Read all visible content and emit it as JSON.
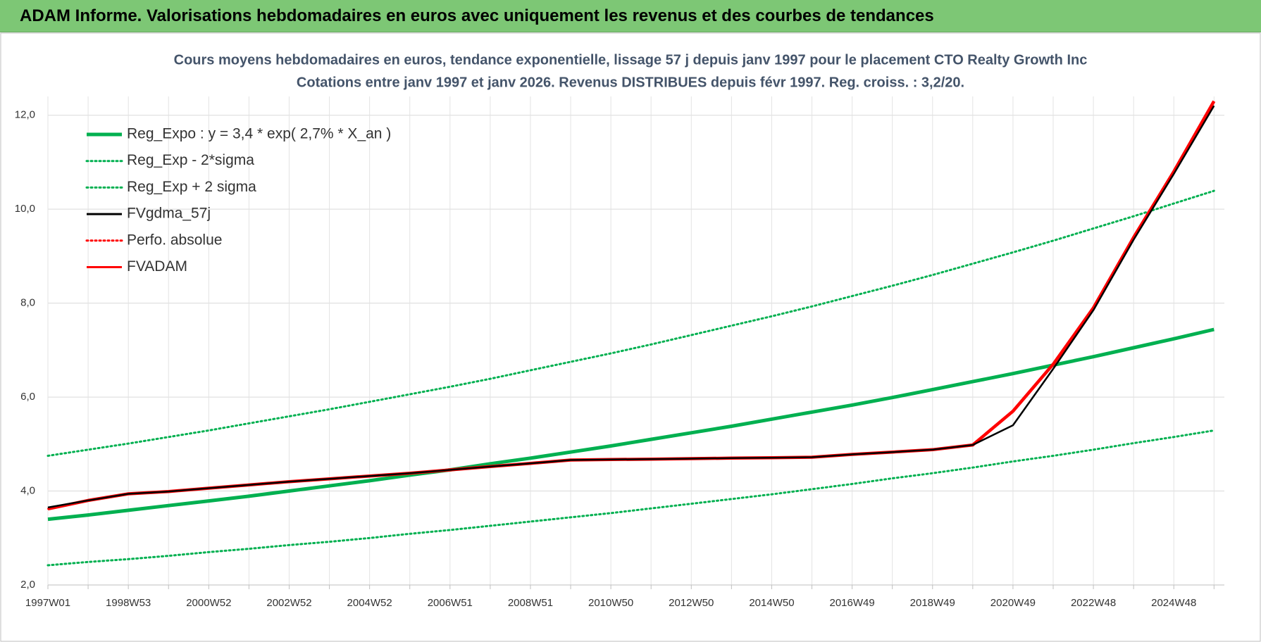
{
  "header": {
    "title": "ADAM Informe. Valorisations hebdomadaires en euros avec uniquement les revenus et des courbes de tendances"
  },
  "chart_data": {
    "type": "line",
    "title": "Cours moyens hebdomadaires en euros, tendance exponentielle, lissage 57 j depuis janv 1997 pour le placement CTO Realty Growth Inc",
    "subtitle": "Cotations entre janv 1997 et janv 2026. Revenus DISTRIBUES depuis févr 1997. Reg. croiss. : 3,2/20.",
    "categories": [
      "1997W01",
      null,
      "1998W53",
      null,
      "2000W52",
      null,
      "2002W52",
      null,
      "2004W52",
      null,
      "2006W51",
      null,
      "2008W51",
      null,
      "2010W50",
      null,
      "2012W50",
      null,
      "2014W50",
      null,
      "2016W49",
      null,
      "2018W49",
      null,
      "2020W49",
      null,
      "2022W48",
      null,
      "2024W48",
      null
    ],
    "ylim": [
      2,
      12.4
    ],
    "yticks": [
      {
        "value": 2,
        "label": "2,0"
      },
      {
        "value": 4,
        "label": "4,0"
      },
      {
        "value": 6,
        "label": "6,0"
      },
      {
        "value": 8,
        "label": "8,0"
      },
      {
        "value": 10,
        "label": "10,0"
      },
      {
        "value": 12,
        "label": "12,0"
      }
    ],
    "grid": true,
    "legend": "top-left",
    "series": [
      {
        "name": "Reg_Expo : y = 3,4 * exp( 2,7% *  X_an )",
        "color": "#00b050",
        "line_style": "solid",
        "values": [
          3.4,
          3.49,
          3.59,
          3.69,
          3.79,
          3.89,
          4.0,
          4.11,
          4.22,
          4.34,
          4.45,
          4.58,
          4.7,
          4.83,
          4.96,
          5.1,
          5.24,
          5.38,
          5.53,
          5.68,
          5.83,
          5.99,
          6.16,
          6.33,
          6.5,
          6.68,
          6.86,
          7.05,
          7.24,
          7.44
        ]
      },
      {
        "name": "Reg_Exp - 2*sigma",
        "color": "#00b050",
        "line_style": "dotted",
        "values": [
          2.42,
          2.49,
          2.55,
          2.62,
          2.7,
          2.77,
          2.85,
          2.92,
          3.0,
          3.09,
          3.17,
          3.26,
          3.35,
          3.44,
          3.53,
          3.63,
          3.73,
          3.83,
          3.93,
          4.04,
          4.15,
          4.27,
          4.38,
          4.5,
          4.63,
          4.75,
          4.88,
          5.02,
          5.15,
          5.29
        ]
      },
      {
        "name": "Reg_Exp + 2 sigma",
        "color": "#00b050",
        "line_style": "dotted",
        "values": [
          4.75,
          4.88,
          5.01,
          5.15,
          5.29,
          5.44,
          5.59,
          5.74,
          5.9,
          6.06,
          6.22,
          6.39,
          6.57,
          6.75,
          6.93,
          7.12,
          7.32,
          7.52,
          7.72,
          7.93,
          8.15,
          8.37,
          8.6,
          8.84,
          9.08,
          9.33,
          9.59,
          9.85,
          10.12,
          10.39
        ]
      },
      {
        "name": "FVgdma_57j",
        "color": "#000000",
        "line_style": "solid",
        "values": [
          3.65,
          3.8,
          3.94,
          3.99,
          4.06,
          4.13,
          4.2,
          4.26,
          4.32,
          4.38,
          4.45,
          4.52,
          4.59,
          4.66,
          4.67,
          4.68,
          4.69,
          4.7,
          4.71,
          4.72,
          4.78,
          4.83,
          4.88,
          4.98,
          5.4,
          6.6,
          7.85,
          9.35,
          10.75,
          12.2
        ]
      },
      {
        "name": "Perfo. absolue",
        "color": "#ff0000",
        "line_style": "dotted",
        "values": [
          3.62,
          3.8,
          3.94,
          3.99,
          4.06,
          4.13,
          4.2,
          4.26,
          4.32,
          4.38,
          4.45,
          4.52,
          4.59,
          4.66,
          4.67,
          4.68,
          4.69,
          4.7,
          4.71,
          4.72,
          4.78,
          4.83,
          4.88,
          4.98,
          5.7,
          6.7,
          7.9,
          9.4,
          10.8,
          12.3
        ]
      },
      {
        "name": "FVADAM",
        "color": "#ff0000",
        "line_style": "solid",
        "values": [
          3.62,
          3.8,
          3.94,
          3.99,
          4.06,
          4.13,
          4.2,
          4.26,
          4.32,
          4.38,
          4.45,
          4.52,
          4.59,
          4.66,
          4.67,
          4.68,
          4.69,
          4.7,
          4.71,
          4.72,
          4.78,
          4.83,
          4.88,
          4.98,
          5.7,
          6.7,
          7.9,
          9.4,
          10.8,
          12.3
        ]
      }
    ]
  }
}
